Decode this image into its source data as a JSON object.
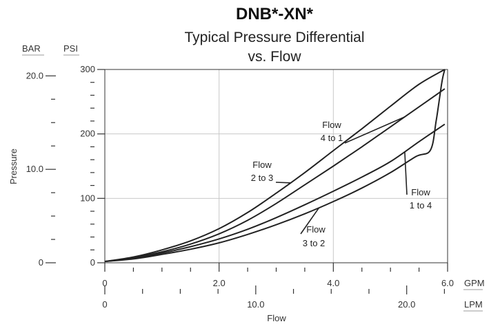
{
  "chart_data": {
    "type": "line",
    "title": "DNB*-XN*",
    "subtitle_line1": "Typical Pressure Differential",
    "subtitle_line2": "vs. Flow",
    "xlabel": "Flow",
    "ylabel": "Pressure",
    "x_unit_primary": "GPM",
    "x_unit_secondary": "LPM",
    "y_unit_primary": "PSI",
    "y_unit_secondary": "BAR",
    "xlim": [
      0,
      6
    ],
    "ylim": [
      0,
      300
    ],
    "grid": true,
    "x_ticks_gpm": [
      "0",
      "2.0",
      "4.0",
      "6.0"
    ],
    "x_ticks_lpm": [
      "0",
      "10.0",
      "20.0"
    ],
    "y_ticks_psi": [
      "0",
      "100",
      "200",
      "300"
    ],
    "y_ticks_bar": [
      "0",
      "10.0",
      "20.0"
    ],
    "series": [
      {
        "name": "Flow 2 to 3",
        "x": [
          0,
          0.5,
          1.0,
          1.5,
          2.0,
          2.5,
          3.0,
          3.5,
          4.0,
          4.5,
          5.0,
          5.5,
          5.95
        ],
        "y": [
          2,
          9,
          20,
          34,
          53,
          78,
          108,
          140,
          174,
          208,
          243,
          277,
          300
        ]
      },
      {
        "name": "Flow 4 to 1",
        "x": [
          0,
          0.5,
          1.0,
          1.5,
          2.0,
          2.5,
          3.0,
          3.5,
          4.0,
          4.5,
          5.0,
          5.5,
          5.95
        ],
        "y": [
          2,
          8,
          17,
          29,
          45,
          66,
          92,
          121,
          150,
          180,
          211,
          242,
          270
        ]
      },
      {
        "name": "Flow 1 to 4",
        "x": [
          0,
          0.5,
          1.0,
          1.5,
          2.0,
          2.5,
          3.0,
          3.5,
          4.0,
          4.5,
          5.0,
          5.5,
          5.95
        ],
        "y": [
          2,
          7,
          15,
          25,
          37,
          52,
          70,
          90,
          111,
          133,
          157,
          188,
          215
        ]
      },
      {
        "name": "Flow 3 to 2",
        "x": [
          0,
          0.5,
          1.0,
          1.5,
          2.0,
          2.5,
          3.0,
          3.5,
          4.0,
          4.5,
          5.0,
          5.45,
          5.7,
          5.8,
          5.9,
          5.95
        ],
        "y": [
          2,
          6,
          13,
          21,
          31,
          44,
          59,
          76,
          95,
          116,
          140,
          165,
          175,
          220,
          280,
          300
        ]
      }
    ],
    "annotations": [
      {
        "line1": "Flow",
        "line2": "2 to 3"
      },
      {
        "line1": "Flow",
        "line2": "4 to 1"
      },
      {
        "line1": "Flow",
        "line2": "1 to 4"
      },
      {
        "line1": "Flow",
        "line2": "3 to 2"
      }
    ]
  }
}
